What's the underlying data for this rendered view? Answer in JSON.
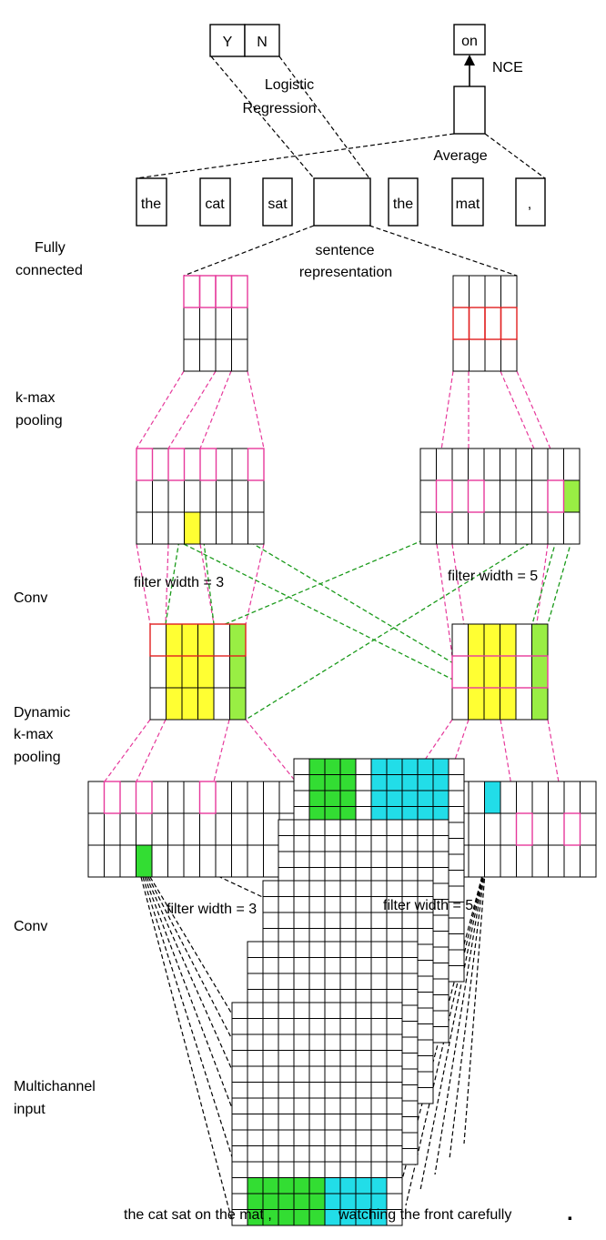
{
  "output_layer": {
    "logistic_cells": [
      "Y",
      "N"
    ],
    "logistic_label_line1": "Logistic",
    "logistic_label_line2": "Regression",
    "nce_cell": "on",
    "nce_label": "NCE",
    "average_label": "Average"
  },
  "context_words": [
    "the",
    "cat",
    "sat",
    "the",
    "mat",
    ","
  ],
  "sentence_label_line1": "sentence",
  "sentence_label_line2": "representation",
  "layer_labels": {
    "fully_connected_line1": "Fully",
    "fully_connected_line2": "connected",
    "kmax_line1": "k-max",
    "kmax_line2": "pooling",
    "conv_upper": "Conv",
    "dynamic_line1": "Dynamic",
    "dynamic_line2": "k-max",
    "dynamic_line3": "pooling",
    "conv_lower": "Conv",
    "multichannel_line1": "Multichannel",
    "multichannel_line2": "input"
  },
  "filter_labels": {
    "upper_left": "filter width = 3",
    "upper_right": "filter width = 5",
    "lower_left": "filter width = 3",
    "lower_right": "filter width = 5"
  },
  "input_sentence": {
    "first": "the cat sat on the mat ,",
    "second": "watching the front carefully",
    "period": "."
  },
  "colors": {
    "yellow": "#ffff33",
    "green_light": "#99ee44",
    "green": "#33dd33",
    "cyan": "#22dde8",
    "pink": "#e6399b",
    "red": "#e02020",
    "dashed_green": "#1a9a1a"
  }
}
